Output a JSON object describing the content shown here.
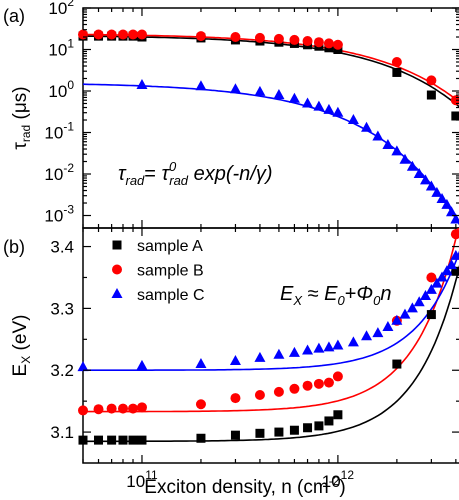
{
  "chart_data": [
    {
      "panel_label": "(a)",
      "type": "scatter",
      "x_scale": "log",
      "y_scale": "log",
      "xlim": [
        50000000000.0,
        4200000000000.0
      ],
      "ylim": [
        0.0005,
        100
      ],
      "ylabel_main": "τ",
      "ylabel_sub": "rad",
      "ylabel_unit": " (μs)",
      "yticks": [
        {
          "v": 100,
          "m": "10",
          "e": "2"
        },
        {
          "v": 10,
          "m": "10",
          "e": "1"
        },
        {
          "v": 1,
          "m": "10",
          "e": "0"
        },
        {
          "v": 0.1,
          "m": "10",
          "e": "-1"
        },
        {
          "v": 0.01,
          "m": "10",
          "e": "-2"
        },
        {
          "v": 0.001,
          "m": "10",
          "e": "-3"
        }
      ],
      "equation": {
        "t1": "τ",
        "s1": "rad",
        "eq": "= ",
        "t2": "τ",
        "sup": "0",
        "s2": "rad",
        "rest": " exp(-n/γ)"
      },
      "series": [
        {
          "key": "A",
          "marker": "square",
          "color": "#000000",
          "x": [
            50000000000.0,
            60000000000.0,
            70000000000.0,
            80000000000.0,
            90000000000.0,
            100000000000.0,
            200000000000.0,
            300000000000.0,
            400000000000.0,
            500000000000.0,
            600000000000.0,
            700000000000.0,
            800000000000.0,
            900000000000.0,
            1000000000000.0,
            2000000000000.0,
            3000000000000.0,
            4000000000000.0
          ],
          "y": [
            21,
            21,
            21,
            21,
            21,
            20,
            19,
            17,
            16,
            15,
            14,
            13,
            12,
            11,
            10,
            2.8,
            0.8,
            0.25
          ],
          "fit_A": 22,
          "fit_g": 1050000000000.0
        },
        {
          "key": "B",
          "marker": "circle",
          "color": "#ff0000",
          "x": [
            50000000000.0,
            60000000000.0,
            70000000000.0,
            80000000000.0,
            90000000000.0,
            100000000000.0,
            200000000000.0,
            300000000000.0,
            400000000000.0,
            500000000000.0,
            600000000000.0,
            700000000000.0,
            800000000000.0,
            900000000000.0,
            1000000000000.0,
            2000000000000.0,
            3000000000000.0,
            4000000000000.0
          ],
          "y": [
            23,
            23,
            23,
            23,
            23,
            23,
            21,
            20,
            19,
            18,
            17,
            16,
            15,
            14,
            13,
            5.0,
            1.8,
            0.6
          ],
          "fit_A": 24,
          "fit_g": 1100000000000.0
        },
        {
          "key": "C",
          "marker": "triangle",
          "color": "#0000ff",
          "x": [
            100000000000.0,
            200000000000.0,
            300000000000.0,
            400000000000.0,
            500000000000.0,
            600000000000.0,
            700000000000.0,
            800000000000.0,
            900000000000.0,
            1000000000000.0,
            1200000000000.0,
            1400000000000.0,
            1600000000000.0,
            1800000000000.0,
            2000000000000.0,
            2200000000000.0,
            2400000000000.0,
            2600000000000.0,
            2800000000000.0,
            3000000000000.0,
            3200000000000.0,
            3400000000000.0,
            3600000000000.0,
            3800000000000.0,
            4000000000000.0
          ],
          "y": [
            1.4,
            1.3,
            1.1,
            0.95,
            0.8,
            0.65,
            0.5,
            0.42,
            0.35,
            0.3,
            0.2,
            0.13,
            0.08,
            0.05,
            0.035,
            0.022,
            0.015,
            0.01,
            0.007,
            0.005,
            0.0035,
            0.0025,
            0.0018,
            0.0012,
            0.0008
          ],
          "fit_A": 1.6,
          "fit_g": 530000000000.0
        }
      ]
    },
    {
      "panel_label": "(b)",
      "type": "scatter",
      "x_scale": "log",
      "y_scale": "linear",
      "xlim": [
        50000000000.0,
        4200000000000.0
      ],
      "ylim": [
        3.05,
        3.43
      ],
      "xlabel": "Exciton density, n (cm",
      "xlabel_sup": "-2",
      "xlabel_end": ")",
      "ylabel_main": "E",
      "ylabel_sub": "X",
      "ylabel_unit": " (eV)",
      "xticks": [
        {
          "v": 100000000000.0,
          "m": "10",
          "e": "11"
        },
        {
          "v": 1000000000000.0,
          "m": "10",
          "e": "12"
        }
      ],
      "yticks": [
        "3.1",
        "3.2",
        "3.3",
        "3.4"
      ],
      "equation": {
        "t1": "E",
        "s1": "X",
        "eq": " ≈ ",
        "t2": "E",
        "s2": "0",
        "plus": "+",
        "t3": "Φ",
        "s3": "0",
        "rest": "n"
      },
      "legend": {
        "position": "top-left",
        "labels": [
          "sample A",
          "sample B",
          "sample C"
        ]
      },
      "series": [
        {
          "key": "A",
          "marker": "square",
          "color": "#000000",
          "x": [
            50000000000.0,
            60000000000.0,
            70000000000.0,
            80000000000.0,
            90000000000.0,
            100000000000.0,
            200000000000.0,
            300000000000.0,
            400000000000.0,
            500000000000.0,
            600000000000.0,
            700000000000.0,
            800000000000.0,
            900000000000.0,
            1000000000000.0,
            2000000000000.0,
            3000000000000.0,
            4000000000000.0
          ],
          "y": [
            3.087,
            3.087,
            3.087,
            3.087,
            3.087,
            3.087,
            3.09,
            3.095,
            3.098,
            3.1,
            3.103,
            3.107,
            3.11,
            3.118,
            3.128,
            3.21,
            3.29,
            3.36
          ],
          "fit_E0": 3.085,
          "fit_P": 6.5e-14
        },
        {
          "key": "B",
          "marker": "circle",
          "color": "#ff0000",
          "x": [
            50000000000.0,
            60000000000.0,
            70000000000.0,
            80000000000.0,
            90000000000.0,
            100000000000.0,
            200000000000.0,
            300000000000.0,
            400000000000.0,
            500000000000.0,
            600000000000.0,
            700000000000.0,
            800000000000.0,
            900000000000.0,
            1000000000000.0,
            2000000000000.0,
            3000000000000.0,
            4000000000000.0
          ],
          "y": [
            3.135,
            3.137,
            3.138,
            3.138,
            3.138,
            3.14,
            3.145,
            3.155,
            3.16,
            3.165,
            3.17,
            3.175,
            3.178,
            3.18,
            3.19,
            3.28,
            3.35,
            3.42
          ],
          "fit_E0": 3.133,
          "fit_P": 7e-14
        },
        {
          "key": "C",
          "marker": "triangle",
          "color": "#0000ff",
          "x": [
            50000000000.0,
            100000000000.0,
            200000000000.0,
            300000000000.0,
            400000000000.0,
            500000000000.0,
            600000000000.0,
            700000000000.0,
            800000000000.0,
            900000000000.0,
            1000000000000.0,
            1200000000000.0,
            1400000000000.0,
            1600000000000.0,
            1800000000000.0,
            2000000000000.0,
            2200000000000.0,
            2400000000000.0,
            2600000000000.0,
            2800000000000.0,
            3000000000000.0,
            3200000000000.0,
            3400000000000.0,
            3600000000000.0,
            3800000000000.0,
            4000000000000.0
          ],
          "y": [
            3.205,
            3.207,
            3.21,
            3.215,
            3.22,
            3.225,
            3.228,
            3.232,
            3.235,
            3.237,
            3.24,
            3.245,
            3.255,
            3.26,
            3.27,
            3.28,
            3.29,
            3.3,
            3.31,
            3.32,
            3.33,
            3.34,
            3.35,
            3.36,
            3.37,
            3.385
          ],
          "fit_E0": 3.2,
          "fit_P": 4.4e-14
        }
      ]
    }
  ]
}
